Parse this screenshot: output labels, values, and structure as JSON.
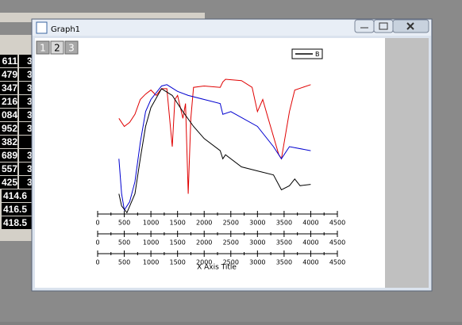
{
  "worksheet": {
    "rows": [
      [
        "611",
        "3"
      ],
      [
        "479",
        "3"
      ],
      [
        "347",
        "3"
      ],
      [
        "216",
        "3"
      ],
      [
        "084",
        "3"
      ],
      [
        "952",
        "3"
      ],
      [
        "382",
        ""
      ],
      [
        "689",
        "3"
      ],
      [
        "557",
        "3"
      ],
      [
        "425",
        "3"
      ],
      [
        "414.6",
        ""
      ],
      [
        "416.5",
        ""
      ],
      [
        "418.5",
        ""
      ]
    ]
  },
  "window": {
    "title": "Graph1",
    "layer_buttons": [
      "1",
      "2",
      "3"
    ]
  },
  "chart_data": {
    "type": "line",
    "x_label": "X Axis Title",
    "xlim": [
      0,
      4500
    ],
    "ylim": [
      0,
      100
    ],
    "xticks": [
      0,
      500,
      1000,
      1500,
      2000,
      2500,
      3000,
      3500,
      4000,
      4500
    ],
    "axis_count": 3,
    "legend": "top-right",
    "series": [
      {
        "color": "#e00000",
        "x": [
          400,
          500,
          600,
          700,
          800,
          900,
          1000,
          1100,
          1200,
          1300,
          1400,
          1450,
          1500,
          1600,
          1650,
          1700,
          1750,
          1800,
          2000,
          2300,
          2350,
          2400,
          2700,
          2900,
          3000,
          3100,
          3200,
          3400,
          3450,
          3600,
          3700,
          4000
        ],
        "values": [
          71,
          65,
          68,
          74,
          85,
          89,
          92,
          88,
          93,
          93,
          50,
          85,
          88,
          71,
          82,
          15,
          71,
          94,
          95,
          94,
          98,
          100,
          99,
          94,
          76,
          85,
          71,
          44,
          41,
          76,
          92,
          96
        ]
      },
      {
        "color": "#0000d0",
        "x": [
          400,
          450,
          500,
          600,
          700,
          800,
          900,
          1000,
          1200,
          1300,
          1500,
          1700,
          2000,
          2300,
          2350,
          2500,
          3000,
          3300,
          3450,
          3600,
          4000
        ],
        "values": [
          41,
          15,
          3,
          9,
          24,
          53,
          76,
          85,
          95,
          96,
          91,
          88,
          85,
          82,
          74,
          76,
          65,
          50,
          41,
          50,
          47
        ]
      },
      {
        "name": "B",
        "color": "#000000",
        "x": [
          400,
          450,
          550,
          700,
          800,
          900,
          1000,
          1200,
          1400,
          1600,
          1800,
          2000,
          2300,
          2350,
          2400,
          2700,
          3000,
          3300,
          3450,
          3600,
          3700,
          3800,
          4000
        ],
        "values": [
          15,
          6,
          1,
          15,
          41,
          65,
          79,
          93,
          88,
          76,
          65,
          56,
          47,
          41,
          44,
          35,
          32,
          29,
          18,
          21,
          26,
          21,
          22
        ]
      }
    ]
  }
}
